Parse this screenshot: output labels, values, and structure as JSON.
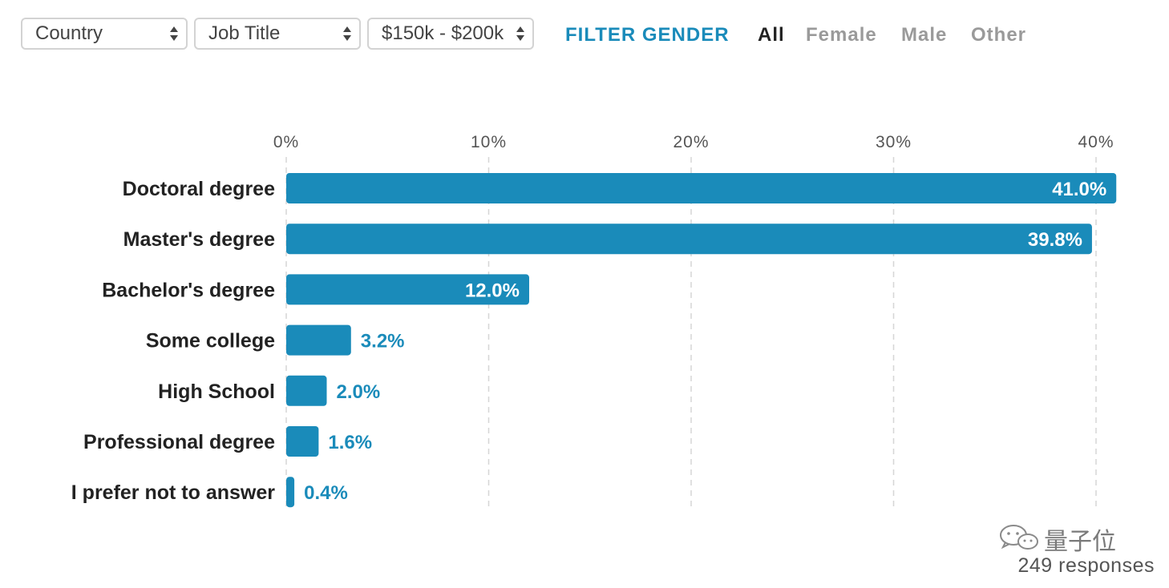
{
  "filters": {
    "country": {
      "value": "Country"
    },
    "job_title": {
      "value": "Job Title"
    },
    "salary": {
      "value": "$150k - $200k"
    }
  },
  "gender_filter": {
    "title": "FILTER GENDER",
    "options": [
      "All",
      "Female",
      "Male",
      "Other"
    ],
    "selected": "All"
  },
  "colors": {
    "bar": "#1a8bba",
    "accent": "#1a8bba",
    "inactive": "#9a9a9a"
  },
  "chart_data": {
    "type": "bar",
    "orientation": "horizontal",
    "categories": [
      "Doctoral degree",
      "Master's degree",
      "Bachelor's degree",
      "Some college",
      "High School",
      "Professional degree",
      "I prefer not to answer"
    ],
    "values": [
      41.0,
      39.8,
      12.0,
      3.2,
      2.0,
      1.6,
      0.4
    ],
    "value_labels": [
      "41.0%",
      "39.8%",
      "12.0%",
      "3.2%",
      "2.0%",
      "1.6%",
      "0.4%"
    ],
    "xlim": [
      0,
      40
    ],
    "xticks": [
      0,
      10,
      20,
      30,
      40
    ],
    "xtick_labels": [
      "0%",
      "10%",
      "20%",
      "30%",
      "40%"
    ],
    "grid": "vertical-dashed",
    "title": "",
    "xlabel": "",
    "ylabel": ""
  },
  "watermark": {
    "text": "量子位",
    "icon": "wechat-icon"
  },
  "footer": {
    "responses": "249 responses"
  }
}
